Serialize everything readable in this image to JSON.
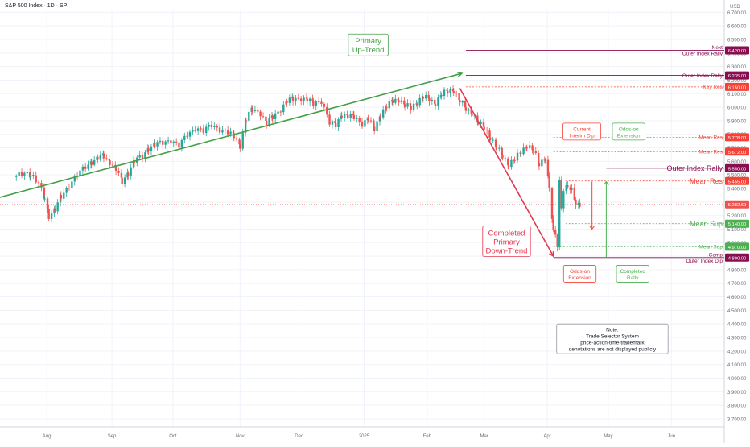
{
  "header": {
    "symbol_line": "S&P 500 Index · 1D · SP"
  },
  "colors": {
    "up": "#26a69a",
    "down": "#ef5350",
    "trend_up": "#43a047",
    "trend_down": "#e53950",
    "outer": "#880e4f",
    "res": "#f44336",
    "sup": "#4caf50",
    "grid": "#f0f3fa",
    "axis_text": "#6a6d78"
  },
  "chart_data": {
    "type": "candlestick",
    "title": "S&P 500 Index · 1D · SP",
    "currency": "USD",
    "ylim": [
      3640,
      6720
    ],
    "y_ticks": [
      3700,
      3800,
      3900,
      4000,
      4100,
      4200,
      4300,
      4400,
      4500,
      4600,
      4700,
      4800,
      4900,
      5000,
      5100,
      5200,
      5300,
      5400,
      5500,
      5600,
      5700,
      5800,
      5900,
      6000,
      6100,
      6200,
      6300,
      6400,
      6500,
      6600,
      6700
    ],
    "x_labels": [
      {
        "label": "Aug",
        "day": 13
      },
      {
        "label": "Sep",
        "day": 45
      },
      {
        "label": "Oct",
        "day": 75
      },
      {
        "label": "Nov",
        "day": 108
      },
      {
        "label": "Dec",
        "day": 137
      },
      {
        "label": "2025",
        "day": 169
      },
      {
        "label": "Feb",
        "day": 200
      },
      {
        "label": "Mar",
        "day": 228
      },
      {
        "label": "Apr",
        "day": 259
      },
      {
        "label": "May",
        "day": 289
      },
      {
        "label": "Jun",
        "day": 320
      }
    ],
    "x_domain": [
      -10,
      346
    ],
    "closes": [
      {
        "day": -2,
        "v": 5485
      },
      {
        "day": 2,
        "v": 5520
      },
      {
        "day": 5,
        "v": 5505
      },
      {
        "day": 9,
        "v": 5430
      },
      {
        "day": 12,
        "v": 5330
      },
      {
        "day": 14,
        "v": 5200
      },
      {
        "day": 17,
        "v": 5240
      },
      {
        "day": 20,
        "v": 5340
      },
      {
        "day": 24,
        "v": 5430
      },
      {
        "day": 28,
        "v": 5500
      },
      {
        "day": 32,
        "v": 5560
      },
      {
        "day": 35,
        "v": 5600
      },
      {
        "day": 38,
        "v": 5620
      },
      {
        "day": 41,
        "v": 5640
      },
      {
        "day": 44,
        "v": 5600
      },
      {
        "day": 47,
        "v": 5540
      },
      {
        "day": 50,
        "v": 5450
      },
      {
        "day": 53,
        "v": 5520
      },
      {
        "day": 56,
        "v": 5600
      },
      {
        "day": 60,
        "v": 5640
      },
      {
        "day": 63,
        "v": 5700
      },
      {
        "day": 66,
        "v": 5720
      },
      {
        "day": 70,
        "v": 5740
      },
      {
        "day": 74,
        "v": 5760
      },
      {
        "day": 78,
        "v": 5710
      },
      {
        "day": 82,
        "v": 5800
      },
      {
        "day": 86,
        "v": 5850
      },
      {
        "day": 90,
        "v": 5820
      },
      {
        "day": 94,
        "v": 5870
      },
      {
        "day": 98,
        "v": 5840
      },
      {
        "day": 102,
        "v": 5810
      },
      {
        "day": 105,
        "v": 5790
      },
      {
        "day": 108,
        "v": 5720
      },
      {
        "day": 111,
        "v": 5910
      },
      {
        "day": 114,
        "v": 5990
      },
      {
        "day": 118,
        "v": 5960
      },
      {
        "day": 121,
        "v": 5880
      },
      {
        "day": 124,
        "v": 5930
      },
      {
        "day": 128,
        "v": 5990
      },
      {
        "day": 131,
        "v": 6040
      },
      {
        "day": 134,
        "v": 6060
      },
      {
        "day": 138,
        "v": 6070
      },
      {
        "day": 141,
        "v": 6050
      },
      {
        "day": 144,
        "v": 6030
      },
      {
        "day": 148,
        "v": 6050
      },
      {
        "day": 152,
        "v": 5880
      },
      {
        "day": 155,
        "v": 5870
      },
      {
        "day": 158,
        "v": 5950
      },
      {
        "day": 161,
        "v": 5930
      },
      {
        "day": 164,
        "v": 5930
      },
      {
        "day": 168,
        "v": 5880
      },
      {
        "day": 171,
        "v": 5910
      },
      {
        "day": 174,
        "v": 5840
      },
      {
        "day": 177,
        "v": 5950
      },
      {
        "day": 180,
        "v": 6000
      },
      {
        "day": 183,
        "v": 6050
      },
      {
        "day": 186,
        "v": 6060
      },
      {
        "day": 189,
        "v": 6010
      },
      {
        "day": 192,
        "v": 6000
      },
      {
        "day": 195,
        "v": 6040
      },
      {
        "day": 198,
        "v": 6070
      },
      {
        "day": 201,
        "v": 6060
      },
      {
        "day": 204,
        "v": 6030
      },
      {
        "day": 207,
        "v": 6090
      },
      {
        "day": 210,
        "v": 6120
      },
      {
        "day": 213,
        "v": 6130
      },
      {
        "day": 216,
        "v": 6040
      },
      {
        "day": 219,
        "v": 5990
      },
      {
        "day": 222,
        "v": 5960
      },
      {
        "day": 225,
        "v": 5880
      },
      {
        "day": 228,
        "v": 5850
      },
      {
        "day": 231,
        "v": 5780
      },
      {
        "day": 234,
        "v": 5700
      },
      {
        "day": 237,
        "v": 5640
      },
      {
        "day": 240,
        "v": 5580
      },
      {
        "day": 243,
        "v": 5610
      },
      {
        "day": 246,
        "v": 5670
      },
      {
        "day": 249,
        "v": 5720
      },
      {
        "day": 252,
        "v": 5680
      },
      {
        "day": 255,
        "v": 5580
      },
      {
        "day": 258,
        "v": 5630
      },
      {
        "day": 260,
        "v": 5400
      },
      {
        "day": 262,
        "v": 5070
      },
      {
        "day": 263,
        "v": 5060
      },
      {
        "day": 264,
        "v": 4980
      },
      {
        "day": 265,
        "v": 5450
      },
      {
        "day": 266,
        "v": 5270
      },
      {
        "day": 267,
        "v": 5400
      },
      {
        "day": 269,
        "v": 5410
      },
      {
        "day": 271,
        "v": 5380
      },
      {
        "day": 273,
        "v": 5290
      },
      {
        "day": 275,
        "v": 5282
      }
    ],
    "last_price": {
      "value": 5282.69,
      "label": "5,282.69"
    },
    "levels": [
      {
        "name": "Next\nOuter Index Rally",
        "label": "6,420.00",
        "value": 6420,
        "kind": "outer",
        "start_day": 219,
        "dashed": false,
        "size": "small"
      },
      {
        "name": "Outer Index Rally",
        "label": "6,235.00",
        "value": 6235,
        "kind": "outer",
        "start_day": 219,
        "dashed": false,
        "size": "small"
      },
      {
        "name": "Key Res",
        "label": "6,150.00",
        "value": 6150,
        "kind": "res",
        "start_day": 219,
        "dashed": true,
        "size": "small"
      },
      {
        "name": "Mean Res",
        "label": "5,778.00",
        "value": 5778,
        "kind": "res",
        "start_day": 262,
        "dashed": true,
        "size": "small"
      },
      {
        "name": "Mean Res",
        "label": "5,672.00",
        "value": 5672,
        "kind": "res",
        "start_day": 262,
        "dashed": true,
        "size": "small"
      },
      {
        "name": "Outer Index Rally",
        "label": "5,550.00",
        "value": 5550,
        "kind": "outer",
        "start_day": 288,
        "dashed": false,
        "size": "big"
      },
      {
        "name": "Mean Res",
        "label": "5,455.00",
        "value": 5455,
        "kind": "res",
        "start_day": 268,
        "dashed": true,
        "size": "big"
      },
      {
        "name": "Mean Sup",
        "label": "5,140.00",
        "value": 5140,
        "kind": "sup",
        "start_day": 268,
        "dashed": true,
        "size": "big"
      },
      {
        "name": "Mean Sup",
        "label": "4,970.00",
        "value": 4970,
        "kind": "sup",
        "start_day": 262,
        "dashed": true,
        "size": "small"
      },
      {
        "name": "Comp\nOuter Index Dip",
        "label": "4,890.00",
        "value": 4890,
        "kind": "outer",
        "start_day": 262,
        "dashed": false,
        "size": "small"
      }
    ],
    "trendlines": [
      {
        "kind": "trend_up",
        "from": {
          "day": -10,
          "v": 5335
        },
        "to": {
          "day": 217,
          "v": 6250
        }
      },
      {
        "kind": "trend_down",
        "from": {
          "day": 216,
          "v": 6140
        },
        "to": {
          "day": 262,
          "v": 4900
        }
      }
    ],
    "annotations": [
      {
        "text": "Primary\nUp-Trend",
        "kind": "trend_up",
        "day": 171,
        "v": 6460,
        "size": "big"
      },
      {
        "text": "Completed\nPrimary\nDown-Trend",
        "kind": "trend_down",
        "day": 239,
        "v": 5010,
        "size": "big"
      },
      {
        "text": "Current\nInterim Dip",
        "kind": "res",
        "day": 276,
        "v": 5820,
        "size": "small"
      },
      {
        "text": "Odds-on\nExtension",
        "kind": "sup",
        "day": 299,
        "v": 5820,
        "size": "small"
      },
      {
        "text": "Odds-on\nExtension",
        "kind": "res",
        "day": 275,
        "v": 4770,
        "size": "small"
      },
      {
        "text": "Completed\nRally",
        "kind": "sup",
        "day": 301,
        "v": 4770,
        "size": "small"
      },
      {
        "text": "Note:\nTrade Selector System\nprice-action-time-trademark\ndenotations are not displayed publicly",
        "kind": "note",
        "day": 291,
        "v": 4290,
        "size": "small"
      }
    ]
  }
}
